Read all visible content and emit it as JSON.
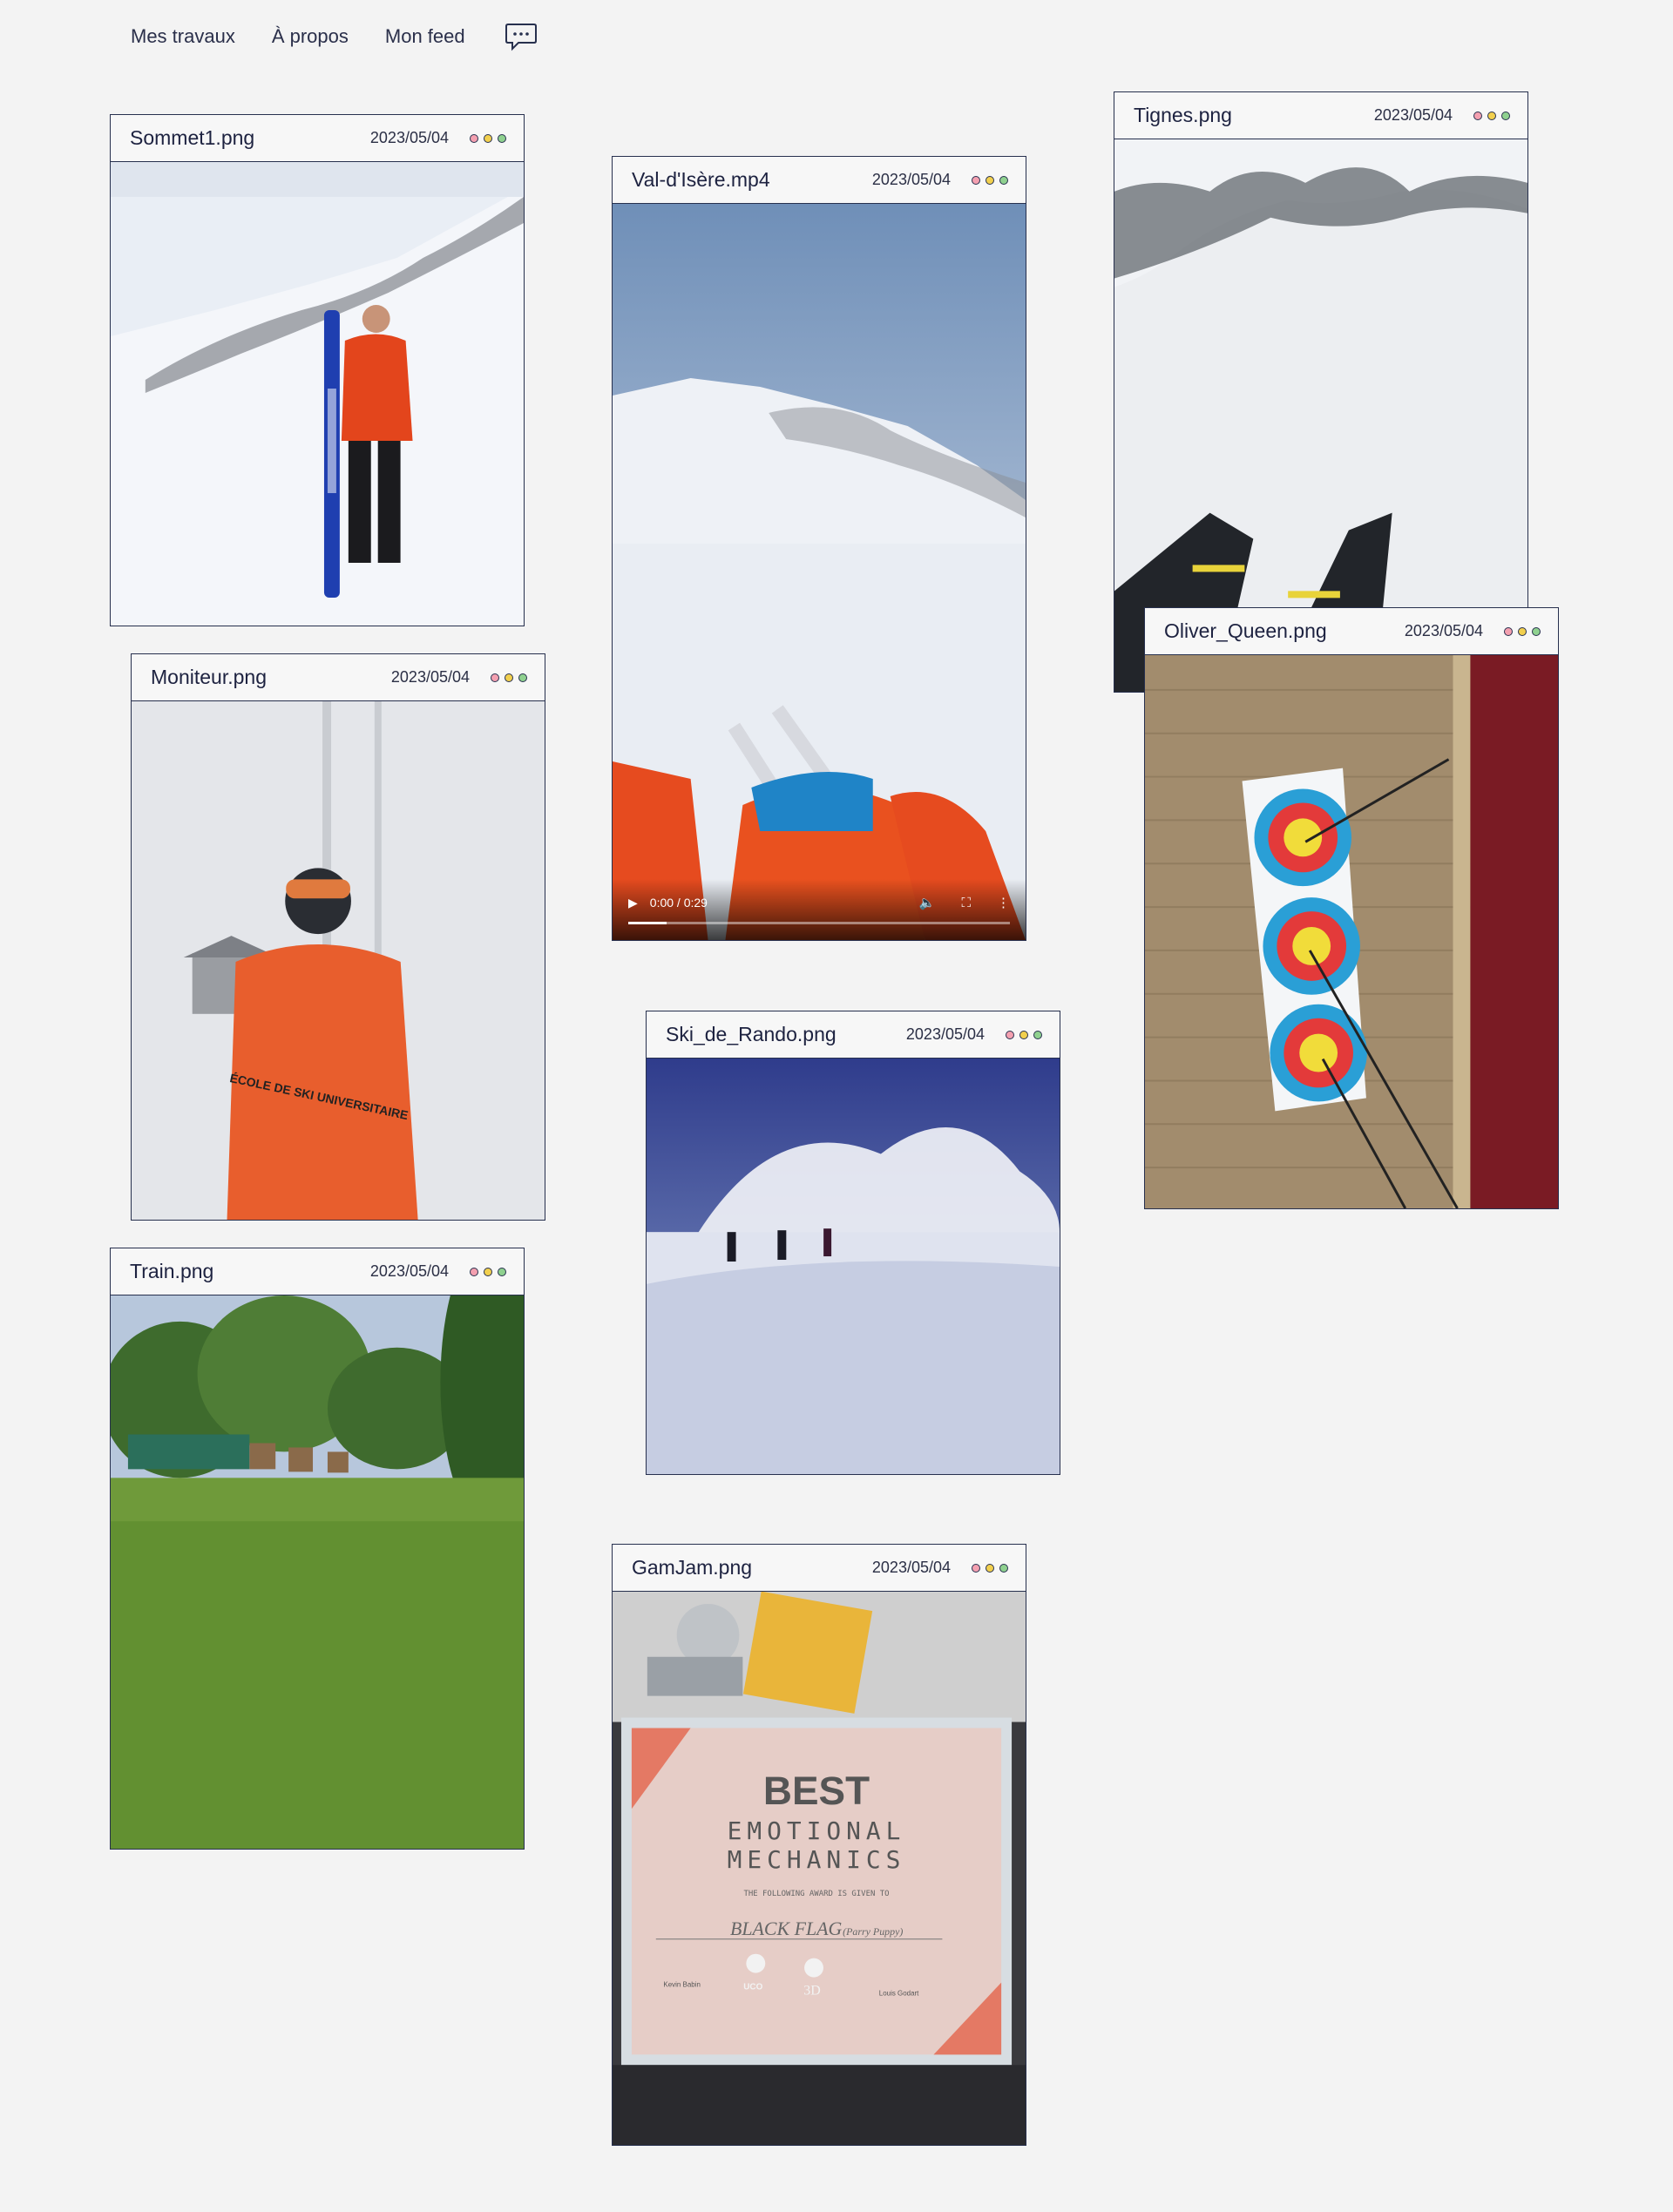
{
  "nav": {
    "items": [
      "Mes travaux",
      "À propos",
      "Mon feed"
    ],
    "chat_icon": "chat-bubble-icon"
  },
  "windows": [
    {
      "id": "sommet",
      "filename": "Sommet1.png",
      "date": "2023/05/04",
      "subject": "Skier in orange jacket holding blue skis on a snowy slope"
    },
    {
      "id": "valdisere",
      "filename": "Val-d'Isère.mp4",
      "date": "2023/05/04",
      "subject": "First-person view of skis in deep powder snow with mountains",
      "video": {
        "time": "0:00 / 0:29",
        "progress": 0.1
      }
    },
    {
      "id": "tignes",
      "filename": "Tignes.png",
      "date": "2023/05/04",
      "subject": "Black Crows skis in the snow below rocky peaks"
    },
    {
      "id": "moniteur",
      "filename": "Moniteur.png",
      "date": "2023/05/04",
      "subject": "Ski instructor in orange jacket and goggles in fog",
      "jacket_text": "ÉCOLE DE SKI UNIVERSITAIRE"
    },
    {
      "id": "oliver",
      "filename": "Oliver_Queen.png",
      "date": "2023/05/04",
      "subject": "Archery target face with arrows on straw boss"
    },
    {
      "id": "rando",
      "filename": "Ski_de_Rando.png",
      "date": "2023/05/04",
      "subject": "Three ski tourers climbing a snowy slope under clouds"
    },
    {
      "id": "train",
      "filename": "Train.png",
      "date": "2023/05/04",
      "subject": "Grass archery field with trees"
    },
    {
      "id": "gamjam",
      "filename": "GamJam.png",
      "date": "2023/05/04",
      "subject": "Framed award certificate",
      "certificate": {
        "title": "BEST",
        "line1": "EMOTIONAL",
        "line2": "MECHANICS",
        "given": "THE FOLLOWING AWARD IS GIVEN TO",
        "winner": "BLACK FLAG",
        "note": "(Parry Puppy)",
        "sign_left": "Kevin Babin",
        "sign_right": "Louis Godart",
        "logo_uco": "UCO",
        "logo_3d": "3D"
      }
    }
  ],
  "colors": {
    "background": "#f3f3f3",
    "border": "#27304e",
    "dot_red": "#f4a0b0",
    "dot_yellow": "#f2d04e",
    "dot_green": "#8fd18f"
  }
}
